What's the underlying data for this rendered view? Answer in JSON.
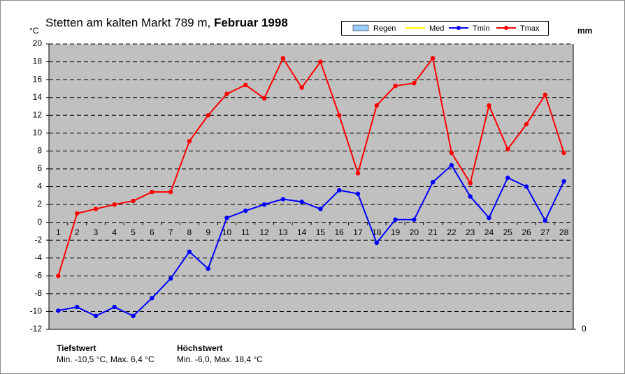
{
  "chart_data": {
    "type": "line",
    "title": "Stetten am kalten Markt 789 m,",
    "title_bold": "Februar 1998",
    "ylabel": "°C",
    "y2label": "mm",
    "categories": [
      "1",
      "2",
      "3",
      "4",
      "5",
      "6",
      "7",
      "8",
      "9",
      "10",
      "11",
      "12",
      "13",
      "14",
      "15",
      "16",
      "17",
      "18",
      "19",
      "20",
      "21",
      "22",
      "23",
      "24",
      "25",
      "26",
      "27",
      "28"
    ],
    "series": [
      {
        "name": "Regen",
        "color": "#99ccff",
        "values": [
          null,
          null,
          null,
          null,
          null,
          null,
          null,
          null,
          null,
          null,
          null,
          null,
          null,
          null,
          null,
          null,
          null,
          null,
          null,
          null,
          null,
          null,
          null,
          null,
          null,
          null,
          null,
          null
        ],
        "axis": "y2"
      },
      {
        "name": "Med",
        "color": "#ffff00",
        "values": [
          null,
          null,
          null,
          null,
          null,
          null,
          null,
          null,
          null,
          null,
          null,
          null,
          null,
          null,
          null,
          null,
          null,
          null,
          null,
          null,
          null,
          null,
          null,
          null,
          null,
          null,
          null,
          null
        ]
      },
      {
        "name": "Tmin",
        "color": "#0000ff",
        "values": [
          -9.9,
          -9.5,
          -10.5,
          -9.5,
          -10.5,
          -8.5,
          -6.3,
          -3.3,
          -5.2,
          0.5,
          1.3,
          2.0,
          2.6,
          2.3,
          1.5,
          3.6,
          3.2,
          -2.3,
          0.3,
          0.3,
          4.5,
          6.4,
          2.9,
          0.5,
          5.0,
          4.0,
          0.2,
          4.6
        ]
      },
      {
        "name": "Tmax",
        "color": "#ff0000",
        "values": [
          -6.0,
          1.0,
          1.5,
          2.0,
          2.4,
          3.4,
          3.4,
          9.1,
          12.0,
          14.4,
          15.4,
          13.9,
          18.4,
          15.1,
          18.0,
          12.0,
          5.5,
          13.1,
          15.3,
          15.6,
          18.4,
          7.8,
          4.4,
          13.1,
          8.2,
          11.0,
          14.3,
          7.8
        ]
      }
    ],
    "ylim": [
      -12,
      20
    ],
    "yticks": [
      -12,
      -10,
      -8,
      -6,
      -4,
      -2,
      0,
      2,
      4,
      6,
      8,
      10,
      12,
      14,
      16,
      18,
      20
    ],
    "y2ticks": [
      0
    ],
    "grid": true,
    "annotations": [
      {
        "title": "Tiefstwert",
        "text": "Min. -10,5 °C, Max. 6,4 °C"
      },
      {
        "title": "Höchstwert",
        "text": "Min. -6,0, Max. 18,4 °C"
      }
    ]
  }
}
